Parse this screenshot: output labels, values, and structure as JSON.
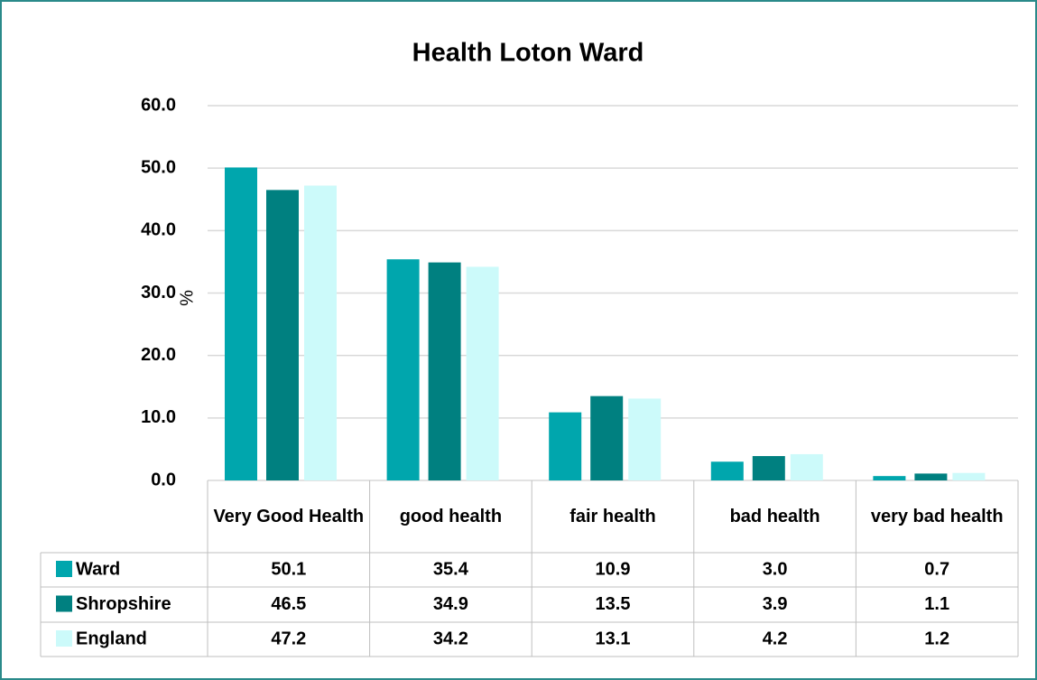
{
  "chart_data": {
    "type": "bar",
    "title": "Health Loton Ward",
    "ylabel": "%",
    "categories": [
      "Very Good Health",
      "good health",
      "fair health",
      "bad health",
      "very bad health"
    ],
    "series": [
      {
        "name": "Ward",
        "color": "#00a6ad",
        "values": [
          50.1,
          35.4,
          10.9,
          3,
          0.7
        ],
        "value_labels": [
          "50.1",
          "35.4",
          "10.9",
          "3.0",
          "0.7"
        ]
      },
      {
        "name": "Shropshire",
        "color": "#008080",
        "values": [
          46.5,
          34.9,
          13.5,
          3.9,
          1.1
        ],
        "value_labels": [
          "46.5",
          "34.9",
          "13.5",
          "3.9",
          "1.1"
        ]
      },
      {
        "name": "England",
        "color": "#ccfafa",
        "values": [
          47.2,
          34.2,
          13.1,
          4.2,
          1.2
        ],
        "value_labels": [
          "47.2",
          "34.2",
          "13.1",
          "4.2",
          "1.2"
        ]
      }
    ],
    "ylim": [
      0,
      60
    ],
    "yticks": [
      {
        "value": 0,
        "label": "0.0"
      },
      {
        "value": 10,
        "label": "10.0"
      },
      {
        "value": 20,
        "label": "20.0"
      },
      {
        "value": 30,
        "label": "30.0"
      },
      {
        "value": 40,
        "label": "40.0"
      },
      {
        "value": 50,
        "label": "50.0"
      },
      {
        "value": 60,
        "label": "60.0"
      }
    ],
    "grid": true
  }
}
